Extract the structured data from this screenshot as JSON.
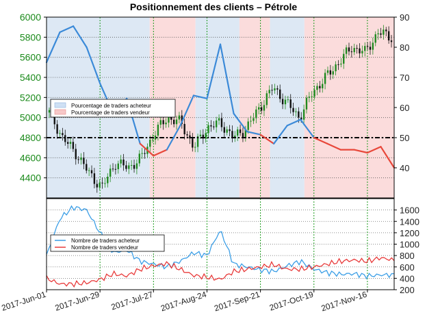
{
  "chart_data": [
    {
      "type": "line",
      "title": "Positionnement des clients – Pétrole",
      "xlabel": "",
      "ylabel": "",
      "x_dates": [
        "2017-06-01",
        "2017-06-08",
        "2017-06-15",
        "2017-06-22",
        "2017-06-29",
        "2017-07-06",
        "2017-07-13",
        "2017-07-20",
        "2017-07-27",
        "2017-08-03",
        "2017-08-10",
        "2017-08-17",
        "2017-08-24",
        "2017-08-31",
        "2017-09-07",
        "2017-09-14",
        "2017-09-21",
        "2017-09-28",
        "2017-10-05",
        "2017-10-12",
        "2017-10-19",
        "2017-10-26",
        "2017-11-02",
        "2017-11-09",
        "2017-11-16",
        "2017-11-23",
        "2017-11-30"
      ],
      "x_tick_labels": [
        "2017-Jun-01",
        "2017-Jun-29",
        "2017-Jul-27",
        "2017-Aug-24",
        "2017-Sep-21",
        "2017-Oct-19",
        "2017-Nov-16"
      ],
      "left_axis": {
        "ylim": [
          4200,
          6000
        ],
        "ticks": [
          4400,
          4600,
          4800,
          5000,
          5200,
          5400,
          5600,
          5800,
          6000
        ],
        "color": "#1a8a1a"
      },
      "right_axis": {
        "ylim": [
          30,
          90
        ],
        "ticks": [
          40,
          50,
          60,
          70,
          80,
          90
        ]
      },
      "threshold": 50,
      "price_series": {
        "name": "Prix",
        "values": [
          5050,
          4800,
          4650,
          4450,
          4300,
          4550,
          4500,
          4600,
          4850,
          5000,
          4950,
          4700,
          4900,
          4950,
          4800,
          4900,
          5100,
          5300,
          5150,
          5000,
          5250,
          5400,
          5550,
          5700,
          5650,
          5850,
          5800
        ]
      },
      "sentiment_series": [
        {
          "name": "Pourcentage de traders acheteur",
          "color": "#3b8ad8",
          "values": [
            75,
            85,
            87,
            80,
            68,
            58,
            63,
            48,
            44,
            46,
            54,
            64,
            63,
            81,
            58,
            52,
            51,
            48,
            54,
            56,
            50,
            48,
            46,
            46,
            45,
            47,
            40
          ]
        },
        {
          "name": "Pourcentage de traders vendeur",
          "color": "#e8473a",
          "values": [
            25,
            15,
            13,
            20,
            32,
            42,
            37,
            52,
            56,
            54,
            46,
            36,
            37,
            19,
            42,
            48,
            49,
            52,
            46,
            44,
            50,
            52,
            54,
            54,
            55,
            53,
            60
          ]
        }
      ],
      "background_bands": [
        {
          "from": "2017-06-01",
          "to": "2017-07-25",
          "color": "#dde8f4"
        },
        {
          "from": "2017-07-25",
          "to": "2017-08-18",
          "color": "#fbdcdc"
        },
        {
          "from": "2017-08-18",
          "to": "2017-09-10",
          "color": "#dde8f4"
        },
        {
          "from": "2017-09-10",
          "to": "2017-09-26",
          "color": "#fbdcdc"
        },
        {
          "from": "2017-09-26",
          "to": "2017-10-14",
          "color": "#dde8f4"
        },
        {
          "from": "2017-10-14",
          "to": "2017-11-30",
          "color": "#fbdcdc"
        }
      ],
      "legend_position": "left-middle",
      "grid": true
    },
    {
      "type": "line",
      "title": "",
      "right_axis": {
        "ylim": [
          200,
          1800
        ],
        "ticks": [
          200,
          400,
          600,
          800,
          1000,
          1200,
          1400,
          1600
        ]
      },
      "series": [
        {
          "name": "Nombre de traders acheteur",
          "color": "#3b9ee6",
          "values": [
            800,
            1450,
            1650,
            1600,
            1200,
            850,
            900,
            700,
            650,
            600,
            700,
            850,
            800,
            1250,
            650,
            600,
            550,
            520,
            620,
            700,
            560,
            500,
            470,
            480,
            440,
            460,
            460
          ]
        },
        {
          "name": "Nombre de traders vendeur",
          "color": "#e83a3a",
          "values": [
            400,
            300,
            300,
            320,
            380,
            480,
            440,
            560,
            620,
            660,
            560,
            450,
            420,
            380,
            520,
            560,
            600,
            640,
            560,
            560,
            600,
            650,
            700,
            720,
            700,
            760,
            720
          ]
        }
      ],
      "legend_position": "left-top",
      "grid": true
    }
  ]
}
